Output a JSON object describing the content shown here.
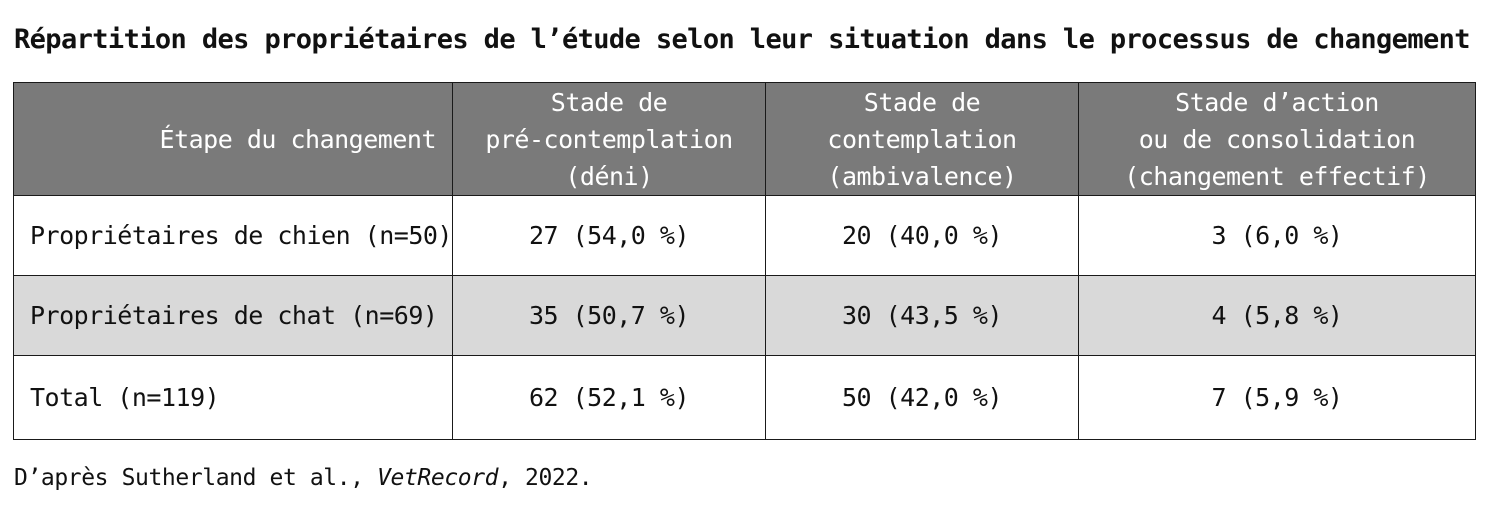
{
  "title": "Répartition des propriétaires de l’étude selon leur situation dans le processus de changement",
  "table": {
    "headers": [
      {
        "lines": [
          "Étape du changement"
        ]
      },
      {
        "lines": [
          "Stade de",
          "pré-contemplation",
          "(déni)"
        ]
      },
      {
        "lines": [
          "Stade de",
          "contemplation",
          "(ambivalence)"
        ]
      },
      {
        "lines": [
          "Stade d’action",
          "ou de consolidation",
          "(changement effectif)"
        ]
      }
    ],
    "rows": [
      {
        "label": "Propriétaires de chien (n=50)",
        "cells": [
          "27 (54,0 %)",
          "20 (40,0 %)",
          "3 (6,0 %)"
        ]
      },
      {
        "label": "Propriétaires de chat (n=69)",
        "cells": [
          "35 (50,7 %)",
          "30 (43,5 %)",
          "4 (5,8 %)"
        ]
      },
      {
        "label": "Total (n=119)",
        "cells": [
          "62 (52,1 %)",
          "50 (42,0 %)",
          "7 (5,9 %)"
        ]
      }
    ],
    "colors": {
      "header_background": "#7a7a7a",
      "header_text": "#ffffff",
      "shaded_row": "#d9d9d9",
      "border": "#1a1a1a"
    }
  },
  "source": {
    "prefix": "D’après Sutherland et al., ",
    "journal": "VetRecord",
    "suffix": ", 2022."
  }
}
